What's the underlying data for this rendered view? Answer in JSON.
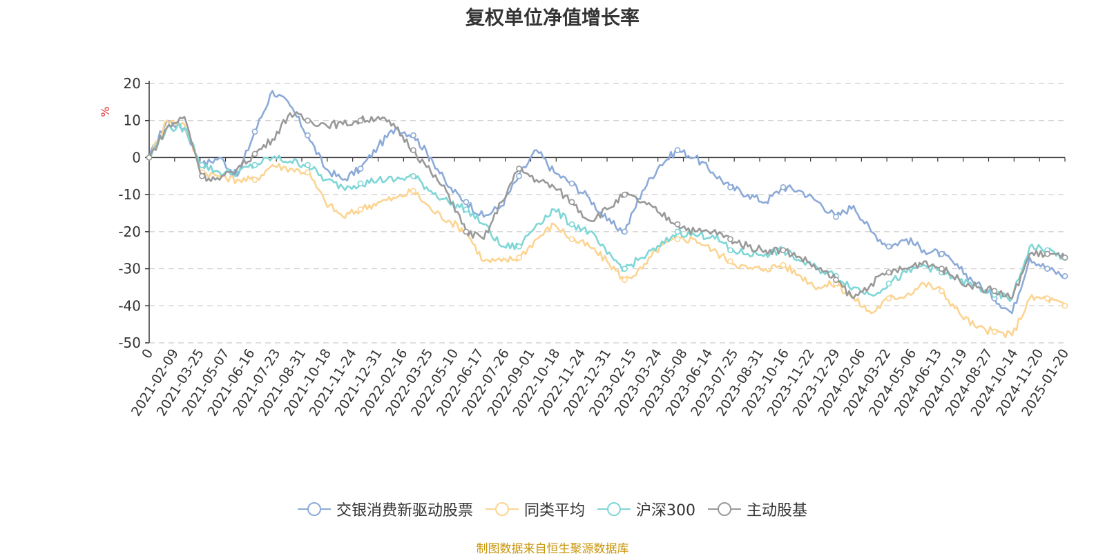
{
  "chart_data": {
    "type": "line",
    "title": "复权单位净值增长率",
    "ylabel": "%",
    "ylim": [
      -50,
      20
    ],
    "yticks": [
      20,
      10,
      0,
      -10,
      -20,
      -30,
      -40,
      -50
    ],
    "x_tick_labels": [
      "0",
      "2021-02-09",
      "2021-03-25",
      "2021-05-07",
      "2021-06-16",
      "2021-07-23",
      "2021-08-31",
      "2021-10-18",
      "2021-11-24",
      "2021-12-31",
      "2022-02-16",
      "2022-03-25",
      "2022-05-10",
      "2022-06-17",
      "2022-07-26",
      "2022-09-01",
      "2022-10-18",
      "2022-11-24",
      "2022-12-31",
      "2023-02-15",
      "2023-03-24",
      "2023-05-08",
      "2023-06-14",
      "2023-07-25",
      "2023-08-31",
      "2023-10-16",
      "2023-11-22",
      "2023-12-29",
      "2024-02-06",
      "2024-03-22",
      "2024-05-06",
      "2024-06-13",
      "2024-07-19",
      "2024-08-27",
      "2024-10-14",
      "2024-11-20",
      "2025-01-20"
    ],
    "grid": true,
    "legend_position": "bottom",
    "series": [
      {
        "name": "交银消费新驱动股票",
        "color": "#8caad8",
        "values": [
          0,
          10,
          8,
          -2,
          0,
          -5,
          7,
          18,
          14,
          6,
          -3,
          -6,
          -3,
          3,
          8,
          6,
          0,
          -8,
          -12,
          -16,
          -13,
          -5,
          2,
          -4,
          -7,
          -11,
          -17,
          -20,
          -9,
          -2,
          2,
          0,
          -4,
          -8,
          -10,
          -12,
          -8,
          -9,
          -12,
          -16,
          -13,
          -20,
          -24,
          -22,
          -25,
          -26,
          -30,
          -34,
          -38,
          -42,
          -27,
          -30,
          -32
        ]
      },
      {
        "name": "同类平均",
        "color": "#fcd491",
        "values": [
          0,
          10,
          9,
          -4,
          -5,
          -6,
          -6,
          -2,
          -3,
          -4,
          -12,
          -16,
          -14,
          -12,
          -11,
          -9,
          -14,
          -17,
          -20,
          -28,
          -28,
          -27,
          -22,
          -18,
          -22,
          -24,
          -28,
          -33,
          -30,
          -24,
          -22,
          -22,
          -25,
          -28,
          -30,
          -30,
          -29,
          -32,
          -35,
          -34,
          -38,
          -42,
          -38,
          -37,
          -34,
          -36,
          -42,
          -46,
          -47,
          -48,
          -38,
          -38,
          -40
        ]
      },
      {
        "name": "沪深300",
        "color": "#7fd6d6",
        "values": [
          0,
          8,
          8,
          -2,
          -4,
          -4,
          -2,
          0,
          -1,
          -2,
          -6,
          -8,
          -7,
          -6,
          -6,
          -5,
          -9,
          -12,
          -14,
          -18,
          -24,
          -24,
          -18,
          -14,
          -18,
          -20,
          -26,
          -30,
          -27,
          -24,
          -20,
          -21,
          -21,
          -25,
          -26,
          -26,
          -25,
          -28,
          -30,
          -32,
          -35,
          -37,
          -34,
          -31,
          -29,
          -31,
          -33,
          -35,
          -37,
          -38,
          -24,
          -25,
          -27
        ]
      },
      {
        "name": "主动股基",
        "color": "#999999",
        "values": [
          0,
          8,
          11,
          -5,
          -6,
          -3,
          1,
          5,
          12,
          10,
          9,
          9,
          10,
          11,
          8,
          2,
          -4,
          -10,
          -20,
          -22,
          -12,
          -3,
          -6,
          -8,
          -12,
          -17,
          -14,
          -10,
          -12,
          -15,
          -18,
          -20,
          -20,
          -22,
          -24,
          -25,
          -25,
          -27,
          -30,
          -33,
          -38,
          -34,
          -31,
          -30,
          -28,
          -30,
          -33,
          -35,
          -36,
          -38,
          -26,
          -26,
          -27
        ]
      }
    ]
  },
  "legend": {
    "items": [
      {
        "label": "交银消费新驱动股票"
      },
      {
        "label": "同类平均"
      },
      {
        "label": "沪深300"
      },
      {
        "label": "主动股基"
      }
    ]
  },
  "source_text": "制图数据来自恒生聚源数据库"
}
